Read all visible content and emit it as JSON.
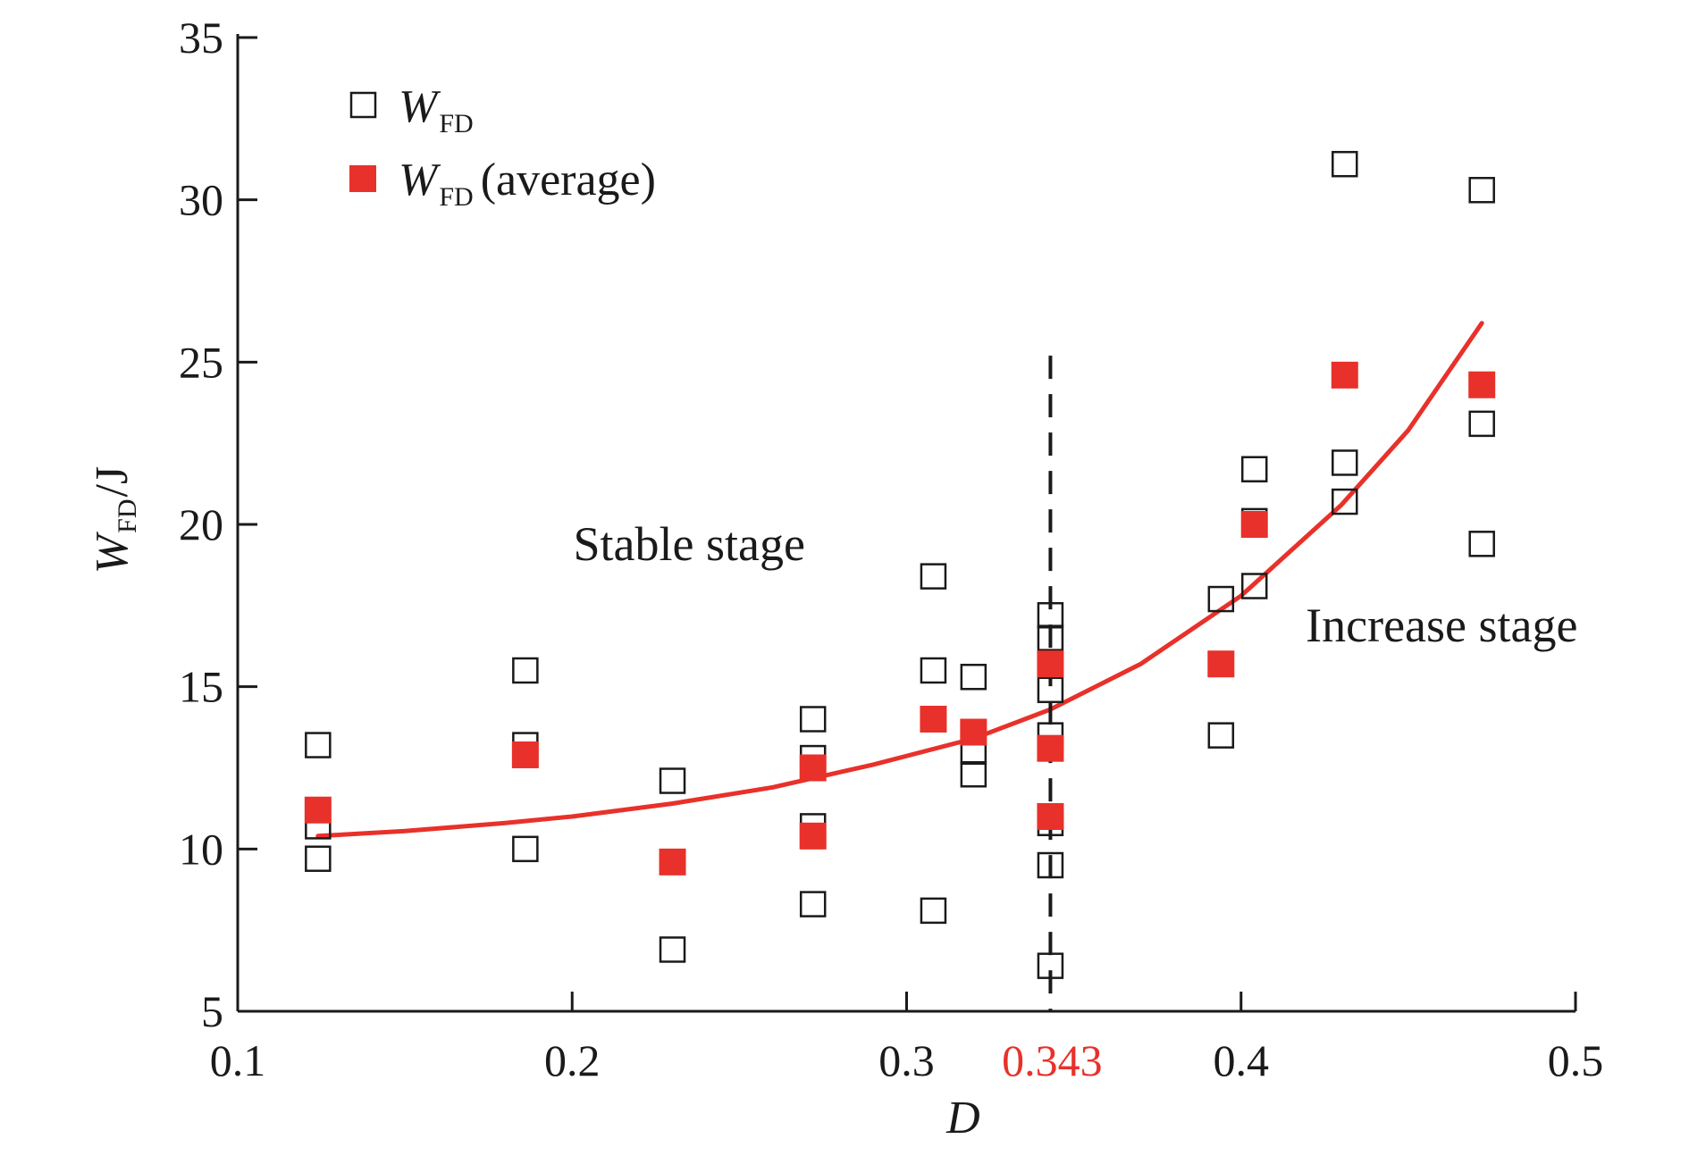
{
  "chart_data": {
    "type": "scatter",
    "xlabel": "D",
    "ylabel": {
      "symbol": "W",
      "subscript": "FD",
      "unit": "/J"
    },
    "xlim": [
      0.1,
      0.5
    ],
    "ylim": [
      5,
      35
    ],
    "x_ticks": [
      0.1,
      0.2,
      0.3,
      0.4,
      0.5
    ],
    "x_tick_labels": [
      "0.1",
      "0.2",
      "0.3",
      "0.4",
      "0.5"
    ],
    "y_ticks": [
      5,
      10,
      15,
      20,
      25,
      30,
      35
    ],
    "y_tick_labels": [
      "5",
      "10",
      "15",
      "20",
      "25",
      "30",
      "35"
    ],
    "grid": false,
    "legend": {
      "position": "top-left",
      "entries": [
        {
          "symbol": "W",
          "subscript": "FD",
          "suffix": ""
        },
        {
          "symbol": "W",
          "subscript": "FD",
          "suffix": "(average)"
        }
      ]
    },
    "series": [
      {
        "marker": "open-square",
        "color": "#1a1a1a",
        "points": [
          [
            0.124,
            13.2
          ],
          [
            0.124,
            10.7
          ],
          [
            0.124,
            9.7
          ],
          [
            0.186,
            15.5
          ],
          [
            0.186,
            13.2
          ],
          [
            0.186,
            10.0
          ],
          [
            0.23,
            12.1
          ],
          [
            0.23,
            6.9
          ],
          [
            0.272,
            14.0
          ],
          [
            0.272,
            12.8
          ],
          [
            0.272,
            10.7
          ],
          [
            0.272,
            10.4
          ],
          [
            0.272,
            8.3
          ],
          [
            0.308,
            18.4
          ],
          [
            0.308,
            15.5
          ],
          [
            0.308,
            8.1
          ],
          [
            0.32,
            15.3
          ],
          [
            0.32,
            13.0
          ],
          [
            0.32,
            12.3
          ],
          [
            0.343,
            17.2
          ],
          [
            0.343,
            16.5
          ],
          [
            0.343,
            14.9
          ],
          [
            0.343,
            13.5
          ],
          [
            0.343,
            10.8
          ],
          [
            0.343,
            9.5
          ],
          [
            0.343,
            6.4
          ],
          [
            0.394,
            17.7
          ],
          [
            0.394,
            13.5
          ],
          [
            0.404,
            21.7
          ],
          [
            0.404,
            20.1
          ],
          [
            0.404,
            18.1
          ],
          [
            0.431,
            31.1
          ],
          [
            0.431,
            21.9
          ],
          [
            0.431,
            20.7
          ],
          [
            0.472,
            30.3
          ],
          [
            0.472,
            23.1
          ],
          [
            0.472,
            19.4
          ]
        ]
      },
      {
        "marker": "filled-square",
        "color": "#e8312a",
        "points": [
          [
            0.124,
            11.2
          ],
          [
            0.186,
            12.9
          ],
          [
            0.23,
            9.6
          ],
          [
            0.272,
            12.5
          ],
          [
            0.272,
            10.4
          ],
          [
            0.308,
            14.0
          ],
          [
            0.32,
            13.6
          ],
          [
            0.343,
            15.7
          ],
          [
            0.343,
            13.1
          ],
          [
            0.343,
            11.0
          ],
          [
            0.394,
            15.7
          ],
          [
            0.404,
            20.0
          ],
          [
            0.431,
            24.6
          ],
          [
            0.472,
            24.3
          ]
        ]
      }
    ],
    "fit_curve": {
      "color": "#e8312a",
      "points": [
        [
          0.124,
          10.4
        ],
        [
          0.15,
          10.55
        ],
        [
          0.18,
          10.8
        ],
        [
          0.2,
          11.0
        ],
        [
          0.23,
          11.4
        ],
        [
          0.26,
          11.9
        ],
        [
          0.29,
          12.6
        ],
        [
          0.32,
          13.4
        ],
        [
          0.343,
          14.3
        ],
        [
          0.37,
          15.7
        ],
        [
          0.4,
          17.8
        ],
        [
          0.43,
          20.6
        ],
        [
          0.45,
          22.9
        ],
        [
          0.472,
          26.2
        ]
      ]
    },
    "threshold": {
      "x": 0.343,
      "y_top": 25.2,
      "label": "0.343",
      "label_color": "#e8312a"
    },
    "annotations": [
      {
        "text": "Stable stage",
        "x": 0.235,
        "y": 18.9
      },
      {
        "text": "Increase stage",
        "x": 0.46,
        "y": 16.4
      }
    ]
  }
}
